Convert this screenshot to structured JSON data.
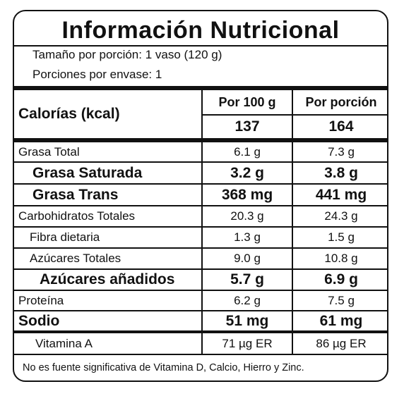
{
  "title": "Información Nutricional",
  "serving_size": "Tamaño por porción: 1 vaso (120 g)",
  "servings_per_container": "Porciones por envase: 1",
  "columns": {
    "per_100g": "Por 100 g",
    "per_serving": "Por porción"
  },
  "calories": {
    "label": "Calorías (kcal)",
    "per_100g": "137",
    "per_serving": "164"
  },
  "rows": [
    {
      "name": "Grasa Total",
      "per_100g": "6.1 g",
      "per_serving": "7.3 g"
    },
    {
      "name": "Grasa Saturada",
      "per_100g": "3.2 g",
      "per_serving": "3.8 g"
    },
    {
      "name": "Grasa Trans",
      "per_100g": "368 mg",
      "per_serving": "441 mg"
    },
    {
      "name": "Carbohidratos Totales",
      "per_100g": "20.3 g",
      "per_serving": "24.3 g"
    },
    {
      "name": "Fibra dietaria",
      "per_100g": "1.3 g",
      "per_serving": "1.5 g"
    },
    {
      "name": "Azúcares Totales",
      "per_100g": "9.0 g",
      "per_serving": "10.8 g"
    },
    {
      "name": "Azúcares añadidos",
      "per_100g": "5.7 g",
      "per_serving": "6.9 g"
    },
    {
      "name": "Proteína",
      "per_100g": "6.2 g",
      "per_serving": "7.5 g"
    },
    {
      "name": "Sodio",
      "per_100g": "51 mg",
      "per_serving": "61 mg"
    },
    {
      "name": "Vitamina A",
      "per_100g": "71 µg ER",
      "per_serving": "86 µg ER"
    }
  ],
  "footer": "No es fuente significativa de Vitamina D, Calcio, Hierro y Zinc."
}
